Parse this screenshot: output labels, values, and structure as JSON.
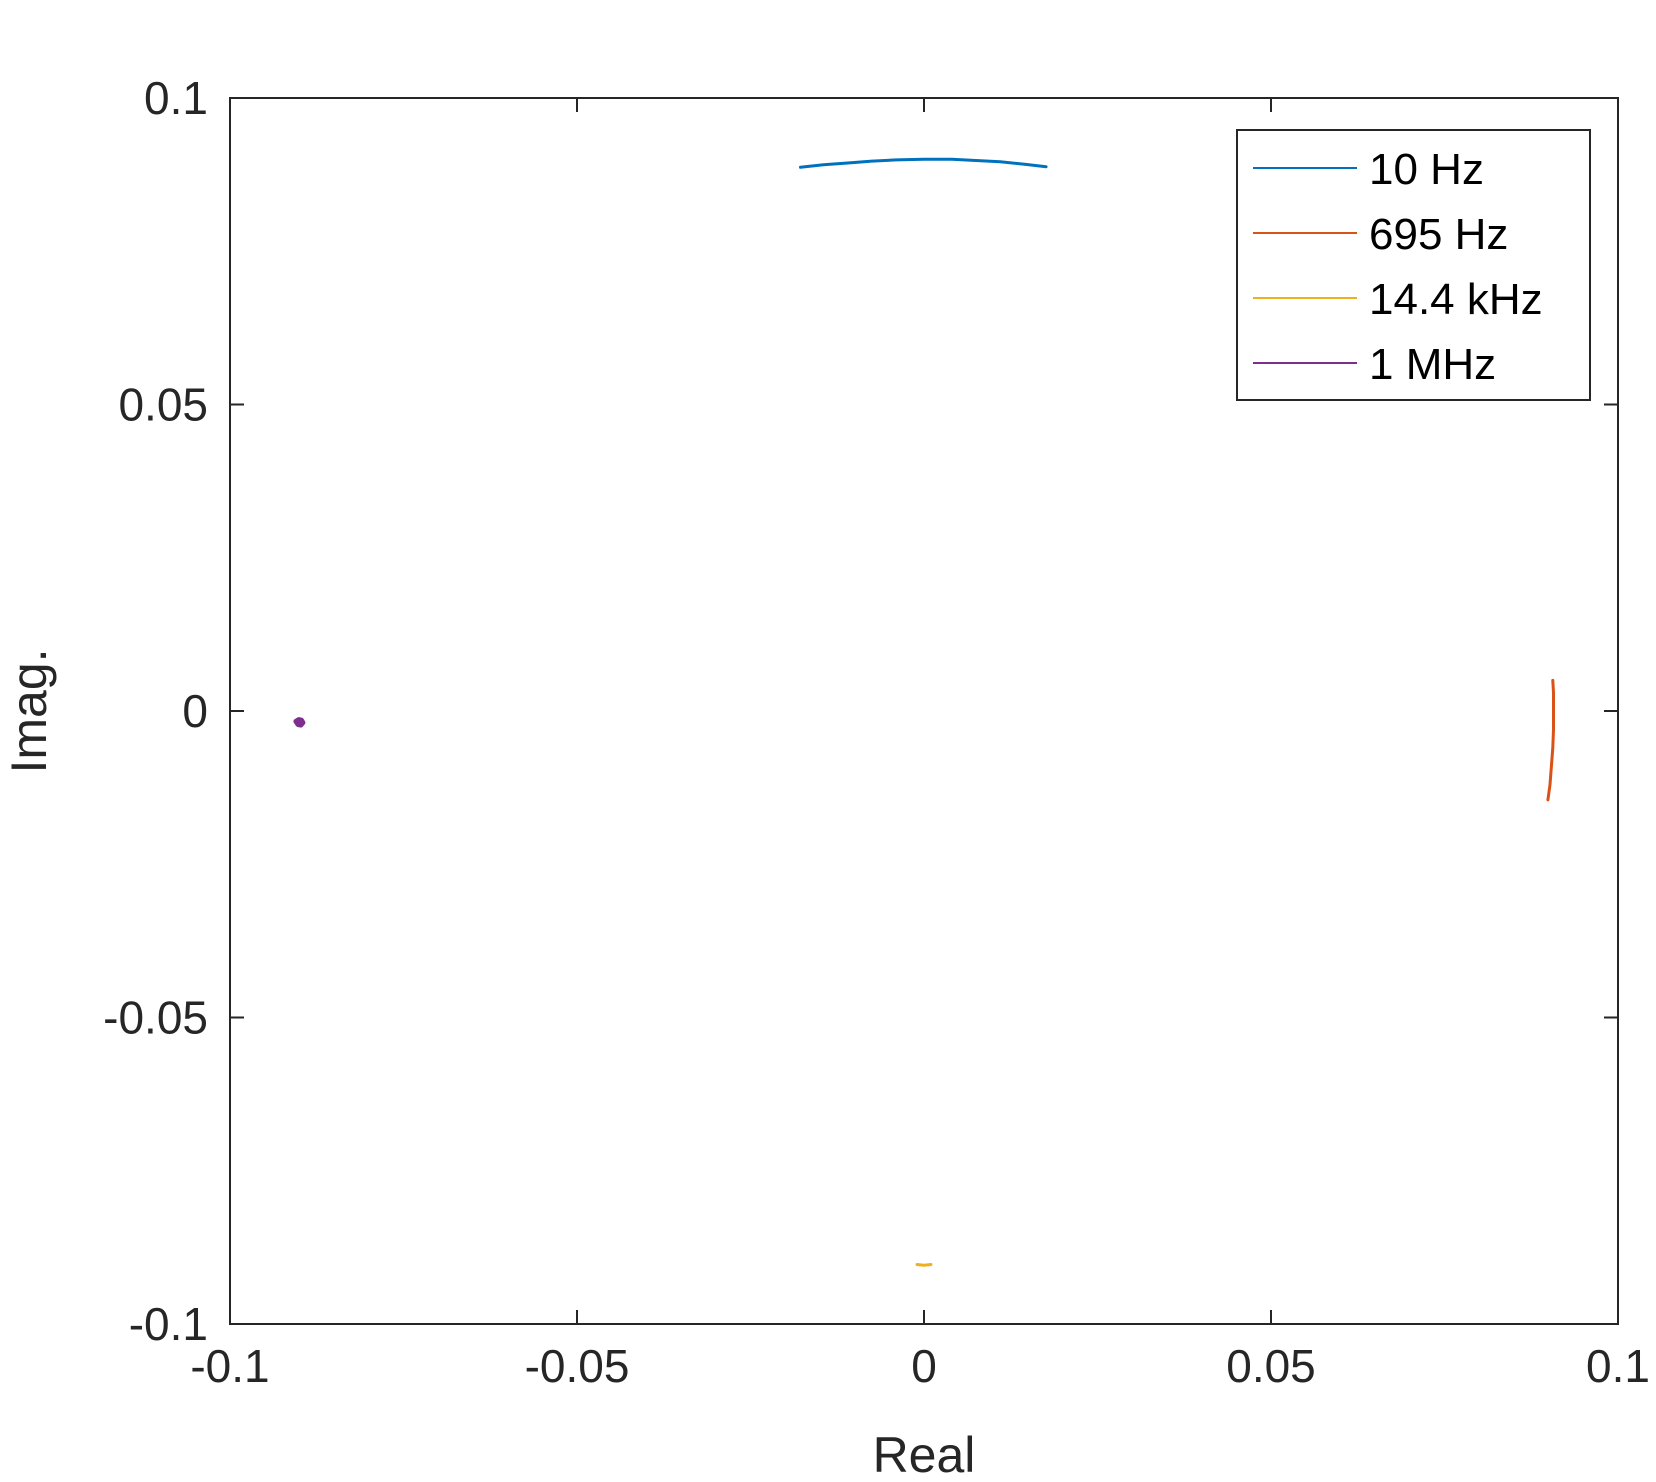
{
  "chart_data": {
    "type": "line",
    "title": "",
    "xlabel": "Real",
    "ylabel": "Imag.",
    "xlim": [
      -0.1,
      0.1
    ],
    "ylim": [
      -0.1,
      0.1
    ],
    "xticks": [
      -0.1,
      -0.05,
      0,
      0.05,
      0.1
    ],
    "yticks": [
      -0.1,
      -0.05,
      0,
      0.05,
      0.1
    ],
    "xtick_labels": [
      "-0.1",
      "-0.05",
      "0",
      "0.05",
      "0.1"
    ],
    "ytick_labels": [
      "-0.1",
      "-0.05",
      "0",
      "0.05",
      "0.1"
    ],
    "grid": false,
    "box": true,
    "legend_position": "top-right",
    "axis_color": "#262626",
    "series": [
      {
        "name": "10 Hz",
        "color": "#0072BD",
        "points": [
          [
            -0.0178,
            0.0887
          ],
          [
            -0.0145,
            0.0891
          ],
          [
            -0.011,
            0.0894
          ],
          [
            -0.0075,
            0.0897
          ],
          [
            -0.004,
            0.0899
          ],
          [
            0.0,
            0.09
          ],
          [
            0.004,
            0.09
          ],
          [
            0.0075,
            0.0898
          ],
          [
            0.011,
            0.0896
          ],
          [
            0.0145,
            0.0892
          ],
          [
            0.0176,
            0.0888
          ]
        ]
      },
      {
        "name": "695 Hz",
        "color": "#D95319",
        "points": [
          [
            0.0906,
            0.005
          ],
          [
            0.0907,
            0.003
          ],
          [
            0.0907,
            0.0
          ],
          [
            0.0907,
            -0.003
          ],
          [
            0.0906,
            -0.006
          ],
          [
            0.0904,
            -0.009
          ],
          [
            0.0902,
            -0.012
          ],
          [
            0.0899,
            -0.0145
          ]
        ]
      },
      {
        "name": "14.4 kHz",
        "color": "#EDB120",
        "points": [
          [
            -0.001,
            -0.0903
          ],
          [
            0.0,
            -0.0904
          ],
          [
            0.001,
            -0.0903
          ]
        ]
      },
      {
        "name": "1 MHz",
        "color": "#7E2F8E",
        "points": [
          [
            -0.0905,
            -0.0017
          ],
          [
            -0.0902,
            -0.0022
          ],
          [
            -0.0898,
            -0.0023
          ],
          [
            -0.0895,
            -0.0019
          ],
          [
            -0.0897,
            -0.0015
          ],
          [
            -0.0901,
            -0.0014
          ],
          [
            -0.0905,
            -0.0017
          ]
        ]
      }
    ]
  }
}
